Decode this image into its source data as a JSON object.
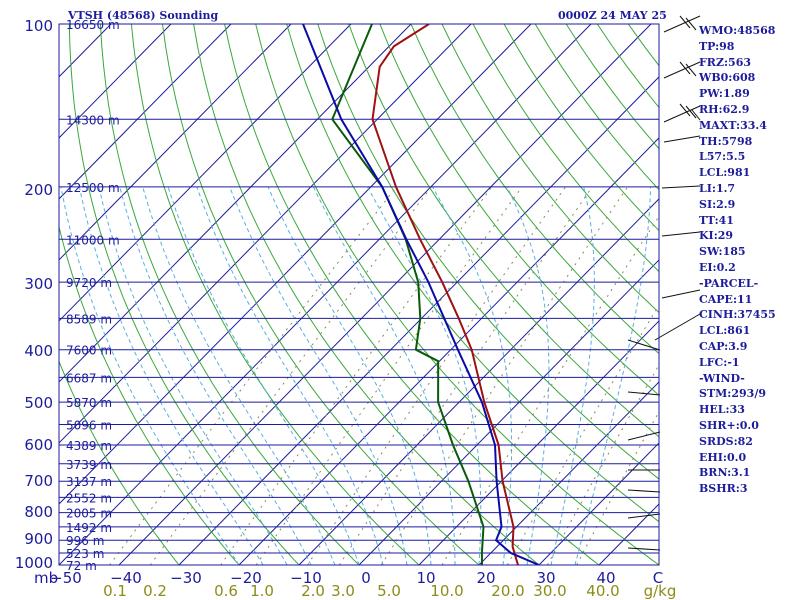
{
  "header": {
    "station": "VTSH (48568) Sounding",
    "time": "0000Z 24 MAY 25"
  },
  "indices": [
    "WMO:48568",
    "TP:98",
    "FRZ:563",
    "WB0:608",
    "PW:1.89",
    "RH:62.9",
    "MAXT:33.4",
    "TH:5798",
    "L57:5.5",
    "LCL:981",
    "LI:1.7",
    "SI:2.9",
    "TT:41",
    "KI:29",
    "SW:185",
    "EI:0.2",
    "-PARCEL-",
    "CAPE:11",
    "CINH:37455",
    "LCL:861",
    "CAP:3.9",
    "LFC:-1",
    "-WIND-",
    "STM:293/9",
    "HEL:33",
    "SHR+:0.0",
    "SRDS:82",
    "EHI:0.0",
    "BRN:3.1",
    "BSHR:3"
  ],
  "chart_data": {
    "type": "skew-t",
    "title": "VTSH (48568) Sounding",
    "subtitle": "0000Z 24 MAY 25",
    "pressure_axis": {
      "scale": "log",
      "range_hPa": [
        1000,
        100
      ],
      "labeled_levels": [
        "100",
        "200",
        "300",
        "400",
        "500",
        "600",
        "700",
        "800",
        "900",
        "1000"
      ]
    },
    "height_labels": [
      {
        "p": 100,
        "text": "16650 m"
      },
      {
        "p": 150,
        "text": "14300 m"
      },
      {
        "p": 200,
        "text": "12500 m"
      },
      {
        "p": 250,
        "text": "11000 m"
      },
      {
        "p": 300,
        "text": "9720 m"
      },
      {
        "p": 350,
        "text": "8589 m"
      },
      {
        "p": 400,
        "text": "7600 m"
      },
      {
        "p": 450,
        "text": "6687 m"
      },
      {
        "p": 500,
        "text": "5870 m"
      },
      {
        "p": 550,
        "text": "5096 m"
      },
      {
        "p": 600,
        "text": "4389 m"
      },
      {
        "p": 650,
        "text": "3739 m"
      },
      {
        "p": 700,
        "text": "3137 m"
      },
      {
        "p": 750,
        "text": "2552 m"
      },
      {
        "p": 800,
        "text": "2005 m"
      },
      {
        "p": 850,
        "text": "1492 m"
      },
      {
        "p": 900,
        "text": "996 m"
      },
      {
        "p": 950,
        "text": "523 m"
      },
      {
        "p": 1000,
        "text": "72 m"
      }
    ],
    "temperature_axis": {
      "unit_label": "C",
      "range_C": [
        -50,
        50
      ],
      "tick_labels": [
        "−50",
        "−40",
        "−30",
        "−20",
        "−10",
        "0",
        "10",
        "20",
        "30",
        "40"
      ],
      "left_label": "mb"
    },
    "mixing_ratio_axis": {
      "unit_label": "g/kg",
      "tick_labels": [
        "0.1",
        "0.2",
        "0.6",
        "1.0",
        "2.0",
        "3.0",
        "5.0",
        "10.0",
        "20.0",
        "30.0",
        "40.0"
      ]
    },
    "colors": {
      "frame": "#1c1c9c",
      "isobar": "#1c1c9c",
      "isotherm": "#1c1c9c",
      "dry_adiabat": "#3aa83a",
      "moist_adiabat": "#5aaee0",
      "mixing_ratio": "#8a8a5a",
      "temperature": "#a01010",
      "dewpoint": "#0a5a0a",
      "parcel": "#0a0aa8",
      "wind": "#111111",
      "height_label": "#1c1c9c",
      "qlabel": "#8c8c18"
    },
    "series": [
      {
        "key": "temperature",
        "points": [
          {
            "p": 1000,
            "t": 26.5
          },
          {
            "p": 925,
            "t": 22.6
          },
          {
            "p": 850,
            "t": 19.5
          },
          {
            "p": 700,
            "t": 10.2
          },
          {
            "p": 600,
            "t": 3.6
          },
          {
            "p": 500,
            "t": -5.8
          },
          {
            "p": 400,
            "t": -16.5
          },
          {
            "p": 350,
            "t": -23.8
          },
          {
            "p": 300,
            "t": -32.5
          },
          {
            "p": 250,
            "t": -43.2
          },
          {
            "p": 200,
            "t": -55.8
          },
          {
            "p": 150,
            "t": -70.8
          },
          {
            "p": 120,
            "t": -78.2
          },
          {
            "p": 110,
            "t": -79.2
          },
          {
            "p": 100,
            "t": -77.0
          }
        ]
      },
      {
        "key": "dewpoint",
        "points": [
          {
            "p": 1000,
            "t": 20.5
          },
          {
            "p": 950,
            "t": 18.5
          },
          {
            "p": 850,
            "t": 14.5
          },
          {
            "p": 700,
            "t": 4.5
          },
          {
            "p": 600,
            "t": -4.0
          },
          {
            "p": 500,
            "t": -13.5
          },
          {
            "p": 420,
            "t": -20.2
          },
          {
            "p": 400,
            "t": -25.8
          },
          {
            "p": 350,
            "t": -30.2
          },
          {
            "p": 300,
            "t": -36.5
          },
          {
            "p": 250,
            "t": -45.6
          },
          {
            "p": 200,
            "t": -58.1
          },
          {
            "p": 150,
            "t": -77.5
          },
          {
            "p": 100,
            "t": -86.5
          }
        ]
      },
      {
        "key": "parcel",
        "points": [
          {
            "p": 1000,
            "t": 30.0
          },
          {
            "p": 950,
            "t": 23.3
          },
          {
            "p": 900,
            "t": 18.8
          },
          {
            "p": 850,
            "t": 17.5
          },
          {
            "p": 700,
            "t": 9.2
          },
          {
            "p": 600,
            "t": 3.0
          },
          {
            "p": 500,
            "t": -6.2
          },
          {
            "p": 400,
            "t": -18.8
          },
          {
            "p": 300,
            "t": -34.8
          },
          {
            "p": 250,
            "t": -45.5
          },
          {
            "p": 200,
            "t": -58.1
          },
          {
            "p": 150,
            "t": -76.0
          },
          {
            "p": 100,
            "t": -98.0
          }
        ]
      }
    ],
    "grid": true,
    "legend": "none"
  }
}
